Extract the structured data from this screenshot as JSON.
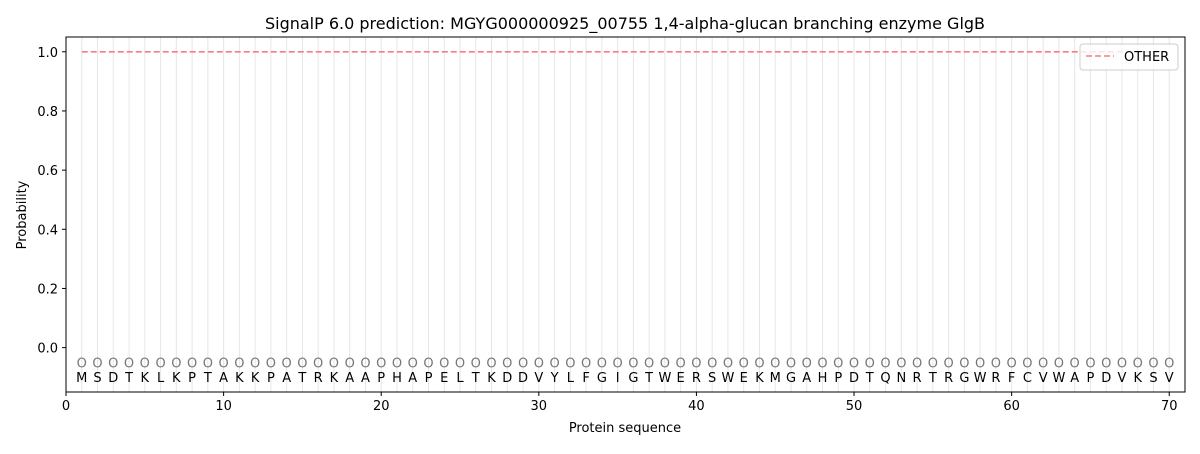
{
  "chart_data": {
    "type": "line",
    "title": "SignalP 6.0 prediction: MGYG000000925_00755 1,4-alpha-glucan branching enzyme GlgB",
    "xlabel": "Protein sequence",
    "ylabel": "Probability",
    "xlim": [
      0,
      71
    ],
    "ylim": [
      -0.15,
      1.05
    ],
    "xticks": [
      0,
      10,
      20,
      30,
      40,
      50,
      60,
      70
    ],
    "yticks": [
      0.0,
      0.2,
      0.4,
      0.6,
      0.8,
      1.0
    ],
    "ytick_labels": [
      "0.0",
      "0.2",
      "0.4",
      "0.6",
      "0.8",
      "1.0"
    ],
    "legend_position": "top-right",
    "sequence": [
      "M",
      "S",
      "D",
      "T",
      "K",
      "L",
      "K",
      "P",
      "T",
      "A",
      "K",
      "K",
      "P",
      "A",
      "T",
      "R",
      "K",
      "A",
      "A",
      "P",
      "H",
      "A",
      "P",
      "E",
      "L",
      "T",
      "K",
      "D",
      "D",
      "V",
      "Y",
      "L",
      "F",
      "G",
      "I",
      "G",
      "T",
      "W",
      "E",
      "R",
      "S",
      "W",
      "E",
      "K",
      "M",
      "G",
      "A",
      "H",
      "P",
      "D",
      "T",
      "Q",
      "N",
      "R",
      "T",
      "R",
      "G",
      "W",
      "R",
      "F",
      "C",
      "V",
      "W",
      "A",
      "P",
      "D",
      "V",
      "K",
      "S",
      "V"
    ],
    "predicted_label": "O",
    "series": [
      {
        "name": "OTHER",
        "color": "#f08080",
        "style": "dashed",
        "x_start": 1,
        "x_end": 70,
        "value": 1.0
      }
    ]
  }
}
